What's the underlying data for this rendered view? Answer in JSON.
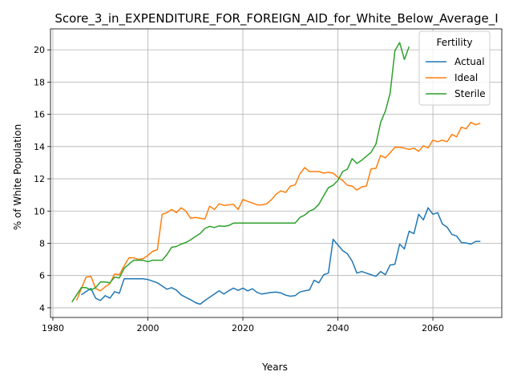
{
  "chart_data": {
    "type": "line",
    "title": "Score_3_in_EXPENDITURE_FOR_FOREIGN_AID_for_White_Below_Average_I",
    "xlabel": "Years",
    "ylabel": "% of White Population",
    "xlim": [
      1979.5,
      2074.5
    ],
    "ylim": [
      3.4,
      21.3
    ],
    "xticks": [
      1980,
      2000,
      2020,
      2040,
      2060
    ],
    "yticks": [
      4,
      6,
      8,
      10,
      12,
      14,
      16,
      18,
      20
    ],
    "grid": true,
    "legend": {
      "title": "Fertility",
      "placement": "top-right"
    },
    "series": [
      {
        "name": "Actual",
        "color": "#1f77b4",
        "x": [
          1986,
          1987,
          1988,
          1989,
          1990,
          1991,
          1992,
          1993,
          1994,
          1995,
          1996,
          1997,
          1998,
          1999,
          2000,
          2001,
          2002,
          2003,
          2004,
          2005,
          2006,
          2007,
          2008,
          2009,
          2010,
          2011,
          2012,
          2013,
          2014,
          2015,
          2016,
          2017,
          2018,
          2019,
          2020,
          2021,
          2022,
          2023,
          2024,
          2025,
          2026,
          2027,
          2028,
          2029,
          2030,
          2031,
          2032,
          2033,
          2034,
          2035,
          2036,
          2037,
          2038,
          2039,
          2040,
          2041,
          2042,
          2043,
          2044,
          2045,
          2046,
          2047,
          2048,
          2049,
          2050,
          2051,
          2052,
          2053,
          2054,
          2055,
          2056,
          2057,
          2058,
          2059,
          2060,
          2061,
          2062,
          2063,
          2064,
          2065,
          2066,
          2067,
          2068,
          2069,
          2070
        ],
        "values": [
          4.8,
          5.0,
          5.2,
          4.6,
          4.45,
          4.75,
          4.6,
          5.0,
          4.9,
          5.8,
          5.8,
          5.8,
          5.8,
          5.8,
          5.75,
          5.65,
          5.55,
          5.35,
          5.15,
          5.25,
          5.1,
          4.8,
          4.65,
          4.5,
          4.32,
          4.22,
          4.45,
          4.65,
          4.85,
          5.05,
          4.85,
          5.05,
          5.22,
          5.08,
          5.22,
          5.05,
          5.18,
          4.95,
          4.85,
          4.9,
          4.95,
          4.97,
          4.92,
          4.78,
          4.72,
          4.75,
          4.98,
          5.05,
          5.1,
          5.7,
          5.55,
          6.05,
          6.15,
          8.25,
          7.9,
          7.55,
          7.35,
          6.9,
          6.15,
          6.25,
          6.15,
          6.05,
          5.95,
          6.25,
          6.05,
          6.65,
          6.7,
          7.95,
          7.65,
          8.75,
          8.6,
          9.8,
          9.45,
          10.2,
          9.8,
          9.9,
          9.2,
          9.0,
          8.55,
          8.45,
          8.05,
          8.02,
          7.95,
          8.12,
          8.12
        ]
      },
      {
        "name": "Ideal",
        "color": "#ff7f0e",
        "x": [
          1985,
          1986,
          1987,
          1988,
          1989,
          1990,
          1991,
          1992,
          1993,
          1994,
          1995,
          1996,
          1997,
          1998,
          1999,
          2000,
          2001,
          2002,
          2003,
          2004,
          2005,
          2006,
          2007,
          2008,
          2009,
          2010,
          2011,
          2012,
          2013,
          2014,
          2015,
          2016,
          2017,
          2018,
          2019,
          2020,
          2021,
          2022,
          2023,
          2024,
          2025,
          2026,
          2027,
          2028,
          2029,
          2030,
          2031,
          2032,
          2033,
          2034,
          2035,
          2036,
          2037,
          2038,
          2039,
          2040,
          2041,
          2042,
          2043,
          2044,
          2045,
          2046,
          2047,
          2048,
          2049,
          2050,
          2051,
          2052,
          2053,
          2054,
          2055,
          2056,
          2057,
          2058,
          2059,
          2060,
          2061,
          2062,
          2063,
          2064,
          2065,
          2066,
          2067,
          2068,
          2069,
          2070
        ],
        "values": [
          4.45,
          5.2,
          5.9,
          5.95,
          5.2,
          5.05,
          5.3,
          5.5,
          6.1,
          6.05,
          6.6,
          7.1,
          7.1,
          7.0,
          7.05,
          7.25,
          7.5,
          7.6,
          9.8,
          9.9,
          10.1,
          9.9,
          10.2,
          10.0,
          9.55,
          9.6,
          9.55,
          9.5,
          10.3,
          10.1,
          10.45,
          10.35,
          10.38,
          10.42,
          10.1,
          10.72,
          10.6,
          10.5,
          10.38,
          10.38,
          10.45,
          10.7,
          11.05,
          11.25,
          11.15,
          11.55,
          11.62,
          12.3,
          12.7,
          12.45,
          12.45,
          12.45,
          12.35,
          12.4,
          12.35,
          12.1,
          11.9,
          11.6,
          11.55,
          11.3,
          11.5,
          11.55,
          12.62,
          12.65,
          13.45,
          13.3,
          13.62,
          13.95,
          13.95,
          13.9,
          13.82,
          13.9,
          13.7,
          14.05,
          13.92,
          14.4,
          14.3,
          14.4,
          14.3,
          14.75,
          14.6,
          15.2,
          15.1,
          15.5,
          15.35,
          15.45
        ]
      },
      {
        "name": "Sterile",
        "color": "#2ca02c",
        "x": [
          1984,
          1985,
          1986,
          1987,
          1988,
          1989,
          1990,
          1991,
          1992,
          1993,
          1994,
          1995,
          1996,
          1997,
          1998,
          1999,
          2000,
          2001,
          2002,
          2003,
          2004,
          2005,
          2006,
          2007,
          2008,
          2009,
          2010,
          2011,
          2012,
          2013,
          2014,
          2015,
          2016,
          2017,
          2018,
          2019,
          2020,
          2021,
          2022,
          2023,
          2024,
          2025,
          2026,
          2027,
          2028,
          2029,
          2030,
          2031,
          2032,
          2033,
          2034,
          2035,
          2036,
          2037,
          2038,
          2039,
          2040,
          2041,
          2042,
          2043,
          2044,
          2045,
          2046,
          2047,
          2048,
          2049,
          2050,
          2051,
          2052,
          2053,
          2054,
          2055
        ],
        "values": [
          4.35,
          4.8,
          5.25,
          5.25,
          5.1,
          5.25,
          5.6,
          5.6,
          5.55,
          5.9,
          5.85,
          6.45,
          6.7,
          6.95,
          6.95,
          6.95,
          6.85,
          6.95,
          6.95,
          6.95,
          7.3,
          7.75,
          7.8,
          7.95,
          8.05,
          8.22,
          8.42,
          8.6,
          8.92,
          9.05,
          8.98,
          9.08,
          9.05,
          9.1,
          9.25,
          9.25,
          9.25,
          9.25,
          9.25,
          9.25,
          9.25,
          9.25,
          9.25,
          9.25,
          9.25,
          9.25,
          9.25,
          9.25,
          9.6,
          9.75,
          10.0,
          10.12,
          10.42,
          10.95,
          11.45,
          11.6,
          11.9,
          12.45,
          12.6,
          13.25,
          12.95,
          13.15,
          13.4,
          13.65,
          14.15,
          15.5,
          16.2,
          17.3,
          19.95,
          20.45,
          19.4,
          20.2
        ]
      }
    ]
  }
}
